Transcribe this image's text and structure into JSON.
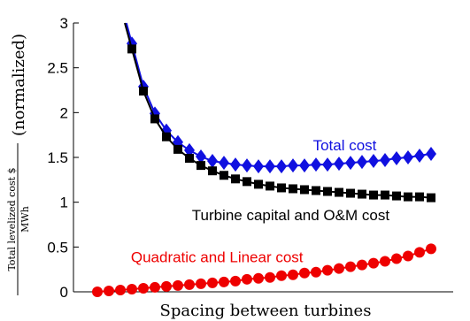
{
  "chart_data": {
    "type": "line",
    "title": "",
    "xlabel": "Spacing between turbines",
    "ylabel_fraction_numerator": "Total levelized cost $",
    "ylabel_fraction_denominator": "MWh",
    "ylabel_suffix": "(normalized)",
    "x_ticks_shown": false,
    "ylim": [
      0,
      3
    ],
    "y_ticks": [
      0,
      0.5,
      1,
      1.5,
      2,
      2.5,
      3
    ],
    "y_tick_labels": [
      "0",
      "0.5",
      "1",
      "1.5",
      "2",
      "2.5",
      "3"
    ],
    "x": [
      1,
      2,
      3,
      4,
      5,
      6,
      7,
      8,
      9,
      10,
      11,
      12,
      13,
      14,
      15,
      16,
      17,
      18,
      19,
      20,
      21,
      22,
      23,
      24,
      25,
      26,
      27,
      28,
      29,
      30
    ],
    "series": [
      {
        "name": "Total cost",
        "color": "#1010e0",
        "marker": "diamond",
        "line_starts_above_top": true,
        "values": [
          null,
          null,
          null,
          2.77,
          2.29,
          1.99,
          1.8,
          1.67,
          1.58,
          1.51,
          1.46,
          1.44,
          1.42,
          1.41,
          1.4,
          1.4,
          1.4,
          1.41,
          1.41,
          1.42,
          1.42,
          1.43,
          1.44,
          1.45,
          1.46,
          1.47,
          1.49,
          1.5,
          1.52,
          1.54
        ]
      },
      {
        "name": "Turbine capital and O&M cost",
        "color": "#000000",
        "marker": "square",
        "line_starts_above_top": true,
        "values": [
          null,
          null,
          null,
          2.71,
          2.24,
          1.93,
          1.73,
          1.59,
          1.49,
          1.41,
          1.35,
          1.3,
          1.26,
          1.23,
          1.2,
          1.18,
          1.16,
          1.15,
          1.14,
          1.13,
          1.12,
          1.11,
          1.1,
          1.09,
          1.08,
          1.08,
          1.07,
          1.06,
          1.06,
          1.05
        ]
      },
      {
        "name": "Quadratic and Linear cost",
        "color": "#ee0000",
        "marker": "circle",
        "line_starts_above_top": false,
        "values": [
          0.0,
          0.01,
          0.02,
          0.03,
          0.04,
          0.05,
          0.06,
          0.07,
          0.08,
          0.09,
          0.1,
          0.11,
          0.12,
          0.14,
          0.15,
          0.16,
          0.18,
          0.19,
          0.21,
          0.22,
          0.24,
          0.26,
          0.28,
          0.3,
          0.32,
          0.34,
          0.37,
          0.4,
          0.44,
          0.48
        ]
      }
    ],
    "annotations": [
      {
        "text": "Total cost",
        "color": "#1010e0",
        "x": 22.5,
        "y": 1.58
      },
      {
        "text": "Turbine capital and O&M cost",
        "color": "#000000",
        "x": 17.8,
        "y": 0.8
      },
      {
        "text": "Quadratic and Linear cost",
        "color": "#ee0000",
        "x": 11.4,
        "y": 0.33
      }
    ]
  }
}
